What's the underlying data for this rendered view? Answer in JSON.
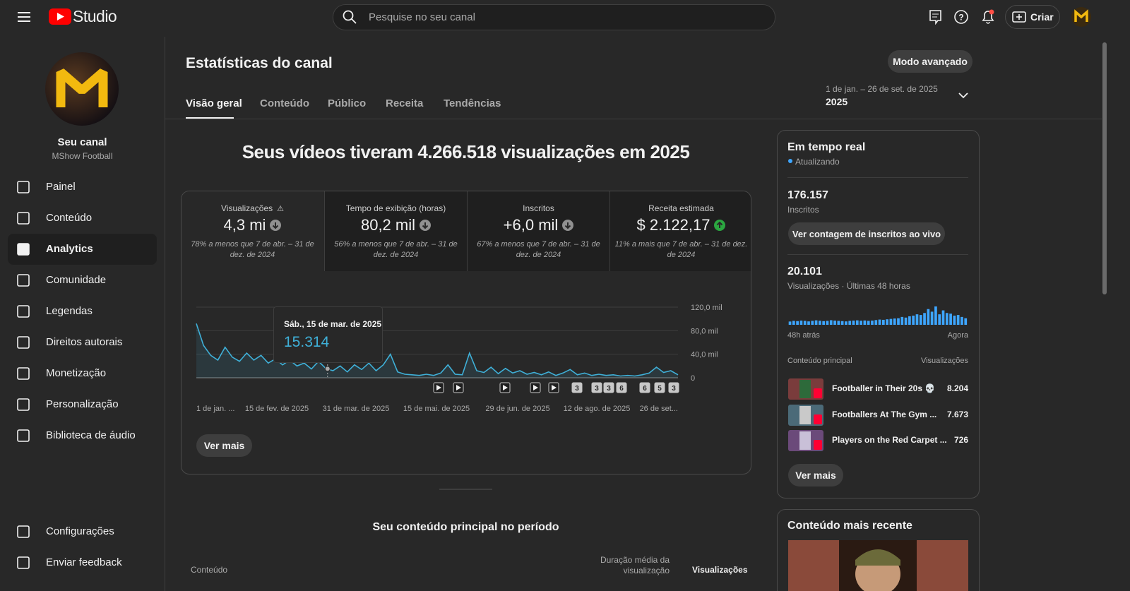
{
  "header": {
    "logo_text": "Studio",
    "search_placeholder": "Pesquise no seu canal",
    "create_button": "Criar"
  },
  "sidebar": {
    "channel_title": "Seu canal",
    "channel_name": "MShow Football",
    "nav": [
      "Painel",
      "Conteúdo",
      "Analytics",
      "Comunidade",
      "Legendas",
      "Direitos autorais",
      "Monetização",
      "Personalização",
      "Biblioteca de áudio"
    ],
    "active_index": 2,
    "footer_nav": [
      "Configurações",
      "Enviar feedback"
    ]
  },
  "main": {
    "title": "Estatísticas do canal",
    "advanced_button": "Modo avançado",
    "tabs": [
      "Visão geral",
      "Conteúdo",
      "Público",
      "Receita",
      "Tendências"
    ],
    "active_tab": 0,
    "date_range": "1 de jan. – 26 de set. de 2025",
    "period": "2025",
    "headline": "Seus vídeos tiveram 4.266.518 visualizações em 2025",
    "metrics": [
      {
        "label": "Visualizações",
        "value": "4,3 mi",
        "trend": "down",
        "warning": true,
        "note": "78% a menos que 7 de abr. – 31 de dez. de 2024"
      },
      {
        "label": "Tempo de exibição (horas)",
        "value": "80,2 mil",
        "trend": "down",
        "warning": false,
        "note": "56% a menos que 7 de abr. – 31 de dez. de 2024"
      },
      {
        "label": "Inscritos",
        "value": "+6,0 mil",
        "trend": "down",
        "warning": false,
        "note": "67% a menos que 7 de abr. – 31 de dez. de 2024"
      },
      {
        "label": "Receita estimada",
        "value": "$ 2.122,17",
        "trend": "up",
        "warning": false,
        "note": "11% a mais que 7 de abr. – 31 de dez. de 2024"
      }
    ],
    "chart": {
      "type": "line",
      "color": "#3fb0d8",
      "grid": true,
      "x_labels": [
        "1 de jan. ...",
        "15 de fev. de 2025",
        "31 de mar. de 2025",
        "15 de mai. de 2025",
        "29 de jun. de 2025",
        "12 de ago. de 2025",
        "26 de set..."
      ],
      "values": [
        92000,
        55000,
        38000,
        30000,
        52000,
        35000,
        28000,
        42000,
        30000,
        38000,
        25000,
        32000,
        22000,
        30000,
        20000,
        25000,
        15000,
        28000,
        16000,
        12000,
        20000,
        10000,
        22000,
        14000,
        25000,
        12000,
        22000,
        40000,
        10000,
        6000,
        5000,
        4000,
        6000,
        4000,
        8000,
        22000,
        6000,
        5000,
        42000,
        12000,
        9000,
        18000,
        7000,
        16000,
        8000,
        12000,
        6000,
        9000,
        5000,
        10000,
        4000,
        8000,
        14000,
        5000,
        8000,
        4000,
        6000,
        4000,
        5000,
        3000,
        4000,
        3000,
        5000,
        8000,
        18000,
        9000,
        12000,
        5000
      ],
      "ylim": [
        0,
        120000
      ],
      "yticks": [
        0,
        {
          "value": 40000,
          "label": "40,0 mil"
        },
        {
          "value": 80000,
          "label": "80,0 mil"
        },
        {
          "value": 120000,
          "label": "120,0 mil"
        }
      ],
      "tooltip": {
        "date": "Sáb., 15 de mar. de 2025",
        "value": 15314,
        "value_label": "15.314"
      },
      "video_markers": [
        null,
        null,
        null,
        null,
        null,
        "3",
        "3",
        "3",
        "6",
        "6",
        "5",
        "3"
      ]
    },
    "more_button": "Ver mais",
    "top_content_title": "Seu conteúdo principal no período",
    "table_headers": [
      "Conteúdo",
      "Duração média da visualização",
      "Visualizações"
    ]
  },
  "realtime": {
    "title": "Em tempo real",
    "status": "Atualizando",
    "subscribers": "176.157",
    "subscribers_label": "Inscritos",
    "live_button": "Ver contagem de inscritos ao vivo",
    "views": "20.101",
    "views_label": "Visualizações · Últimas 48 horas",
    "views_chart": {
      "type": "bar",
      "color": "#3ea6ff",
      "values": [
        250,
        300,
        280,
        320,
        300,
        260,
        300,
        340,
        310,
        280,
        300,
        350,
        320,
        300,
        280,
        260,
        300,
        320,
        340,
        310,
        330,
        300,
        320,
        360,
        400,
        380,
        420,
        450,
        480,
        500,
        600,
        550,
        650,
        700,
        800,
        750,
        900,
        1200,
        1000,
        1400,
        800,
        1100,
        900,
        850,
        700,
        750,
        600,
        500
      ],
      "start_label": "48h atrás",
      "end_label": "Agora"
    },
    "top_header": "Conteúdo principal",
    "top_views_header": "Visualizações",
    "top_items": [
      {
        "title": "Footballer in Their 20s 💀",
        "views": "8.204"
      },
      {
        "title": "Footballers At The Gym ...",
        "views": "7.673"
      },
      {
        "title": "Players on the Red Carpet ...",
        "views": "726"
      }
    ],
    "more_button": "Ver mais"
  },
  "latest": {
    "title": "Conteúdo mais recente"
  }
}
